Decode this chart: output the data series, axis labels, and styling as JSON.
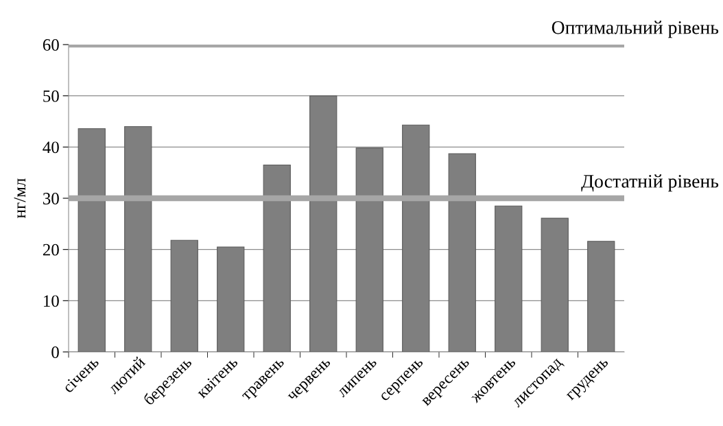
{
  "chart_data": {
    "type": "bar",
    "ylabel": "нг/мл",
    "categories": [
      "січень",
      "лютий",
      "березень",
      "квітень",
      "травень",
      "червень",
      "липень",
      "серпень",
      "вересень",
      "жовтень",
      "листопад",
      "грудень"
    ],
    "values": [
      43.6,
      44.0,
      21.8,
      20.5,
      36.5,
      50.0,
      39.8,
      44.3,
      38.7,
      28.5,
      26.1,
      21.6
    ],
    "color": "#7f7f7f",
    "ylim": [
      0,
      60
    ],
    "yticks": [
      0,
      10,
      20,
      30,
      40,
      50,
      60
    ],
    "grid": "y",
    "ref_lines": [
      {
        "axis": "y",
        "value": 60,
        "label": "Оптимальний рівень",
        "color": "#a6a6a6"
      },
      {
        "axis": "y",
        "value": 30,
        "label": "Достатній рівень",
        "color": "#a6a6a6"
      }
    ]
  }
}
